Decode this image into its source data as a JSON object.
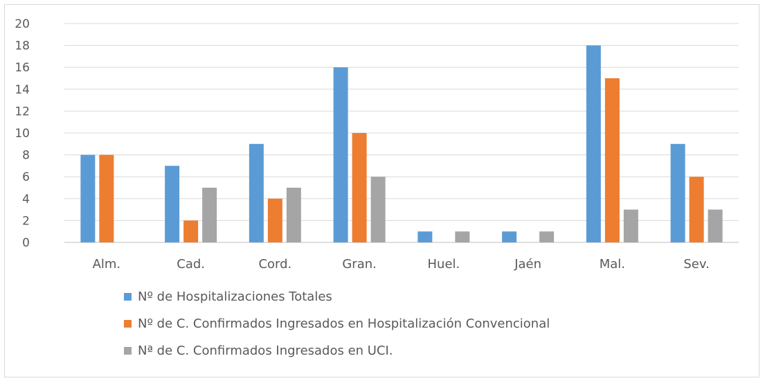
{
  "chart_data": {
    "type": "bar",
    "title": "",
    "xlabel": "",
    "ylabel": "",
    "ylim": [
      0,
      20
    ],
    "yticks": [
      0,
      2,
      4,
      6,
      8,
      10,
      12,
      14,
      16,
      18,
      20
    ],
    "grid": true,
    "legend_position": "bottom",
    "categories": [
      "Alm.",
      "Cad.",
      "Cord.",
      "Gran.",
      "Huel.",
      "Jaén",
      "Mal.",
      "Sev."
    ],
    "series": [
      {
        "name": "Nº de Hospitalizaciones Totales",
        "color": "#5b9bd5",
        "values": [
          8,
          7,
          9,
          16,
          1,
          1,
          18,
          9
        ]
      },
      {
        "name": "Nº de C. Confirmados Ingresados en Hospitalización Convencional",
        "color": "#ed7d31",
        "values": [
          8,
          2,
          4,
          10,
          0,
          0,
          15,
          6
        ]
      },
      {
        "name": "Nª de C. Confirmados Ingresados en UCI.",
        "color": "#a5a5a5",
        "values": [
          0,
          5,
          5,
          6,
          1,
          1,
          3,
          3
        ]
      }
    ]
  }
}
